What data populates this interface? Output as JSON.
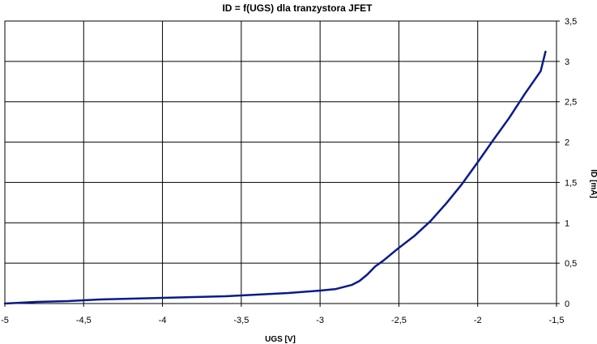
{
  "chart_data": {
    "type": "line",
    "title": "ID = f(UGS) dla tranzystora JFET",
    "xlabel": "UGS [V]",
    "ylabel": "ID [mA]",
    "xlim": [
      -5,
      -1.5
    ],
    "ylim": [
      0,
      3.5
    ],
    "x_ticks": [
      -5,
      -4.5,
      -4,
      -3.5,
      -3,
      -2.5,
      -2,
      -1.5
    ],
    "x_tick_labels": [
      "-5",
      "-4,5",
      "-4",
      "-3,5",
      "-3",
      "-2,5",
      "-2",
      "-1,5"
    ],
    "y_ticks": [
      0,
      0.5,
      1,
      1.5,
      2,
      2.5,
      3,
      3.5
    ],
    "y_tick_labels": [
      "0",
      "0,5",
      "1",
      "1,5",
      "2",
      "2,5",
      "3",
      "3,5"
    ],
    "y_axis_side": "right",
    "grid": true,
    "series": [
      {
        "color": "#0a1a8c",
        "x": [
          -5.0,
          -4.8,
          -4.6,
          -4.4,
          -4.2,
          -4.0,
          -3.8,
          -3.6,
          -3.4,
          -3.2,
          -3.0,
          -2.9,
          -2.8,
          -2.75,
          -2.7,
          -2.65,
          -2.6,
          -2.5,
          -2.4,
          -2.3,
          -2.2,
          -2.1,
          -2.0,
          -1.9,
          -1.8,
          -1.7,
          -1.6,
          -1.57
        ],
        "y": [
          0.0,
          0.02,
          0.03,
          0.05,
          0.06,
          0.07,
          0.08,
          0.09,
          0.11,
          0.13,
          0.16,
          0.18,
          0.23,
          0.28,
          0.36,
          0.46,
          0.53,
          0.69,
          0.84,
          1.02,
          1.24,
          1.48,
          1.75,
          2.03,
          2.3,
          2.6,
          2.88,
          3.12
        ]
      }
    ]
  }
}
